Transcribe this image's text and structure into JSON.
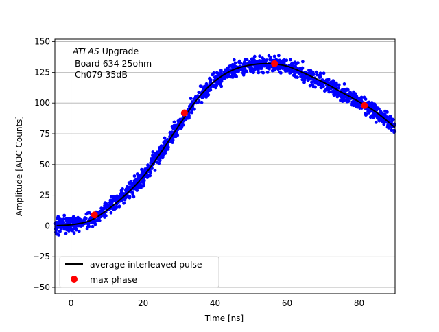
{
  "chart_data": {
    "type": "scatter",
    "xlabel": "Time [ns]",
    "ylabel": "Amplitude [ADC Counts]",
    "xlim": [
      -4.5,
      90
    ],
    "ylim": [
      -55,
      152
    ],
    "xticks": [
      0,
      20,
      40,
      60,
      80
    ],
    "yticks": [
      -50,
      -25,
      0,
      25,
      50,
      75,
      100,
      125,
      150
    ],
    "grid": true,
    "legend_position": "lower-left",
    "annotation": {
      "line1_italic": "ATLAS",
      "line1_rest": " Upgrade",
      "line2": "Board 634 25ohm",
      "line3": "Ch079 35dB"
    },
    "series": [
      {
        "name": "",
        "kind": "scatter",
        "color": "#0000ff",
        "note": "dense cloud of interleaved samples scattered around the average pulse",
        "x_range": [
          -4.5,
          90
        ],
        "approx_point_count": 1500
      },
      {
        "name": "average interleaved pulse",
        "kind": "line",
        "color": "#000000",
        "x": [
          -4,
          0,
          5,
          10,
          15,
          20,
          25,
          30,
          35,
          40,
          45,
          50,
          55,
          60,
          65,
          70,
          75,
          80,
          85,
          90
        ],
        "y": [
          0.3,
          1,
          4,
          13,
          25,
          40,
          60,
          82,
          103,
          118,
          127,
          131,
          132,
          130,
          124,
          117,
          109,
          101,
          92,
          80
        ]
      },
      {
        "name": "max phase",
        "kind": "scatter",
        "color": "#ff0000",
        "x": [
          6.5,
          31.5,
          56.5,
          81.5
        ],
        "y": [
          9,
          92,
          132,
          98
        ]
      }
    ]
  }
}
